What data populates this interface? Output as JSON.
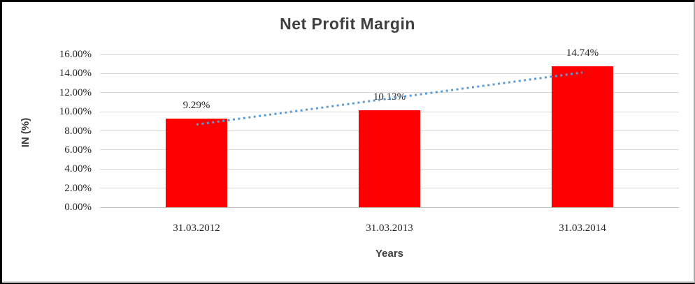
{
  "chart_data": {
    "type": "bar",
    "title": "Net Profit Margin",
    "categories": [
      "31.03.2012",
      "31.03.2013",
      "31.03.2014"
    ],
    "values": [
      9.29,
      10.13,
      14.74
    ],
    "data_labels": [
      "9.29%",
      "10.13%",
      "14.74%"
    ],
    "xlabel": "Years",
    "ylabel": "IN (%)",
    "ylim": [
      0,
      16
    ],
    "ytick_step": 2,
    "ytick_labels": [
      "0.00%",
      "2.00%",
      "4.00%",
      "6.00%",
      "8.00%",
      "10.00%",
      "12.00%",
      "14.00%",
      "16.00%"
    ],
    "grid": true,
    "legend_position": "none",
    "trendline": {
      "type": "linear",
      "style": "dotted"
    }
  },
  "colors": {
    "bar": "#ff0000",
    "trendline": "#5b9bd5",
    "gridline": "#d9d9d9",
    "axis_line": "#bfbfbf",
    "title_text": "#3f3f3f",
    "tick_text": "#262626",
    "chart_border": "#d9d9d9",
    "frame_border": "#000000",
    "background": "#ffffff"
  }
}
